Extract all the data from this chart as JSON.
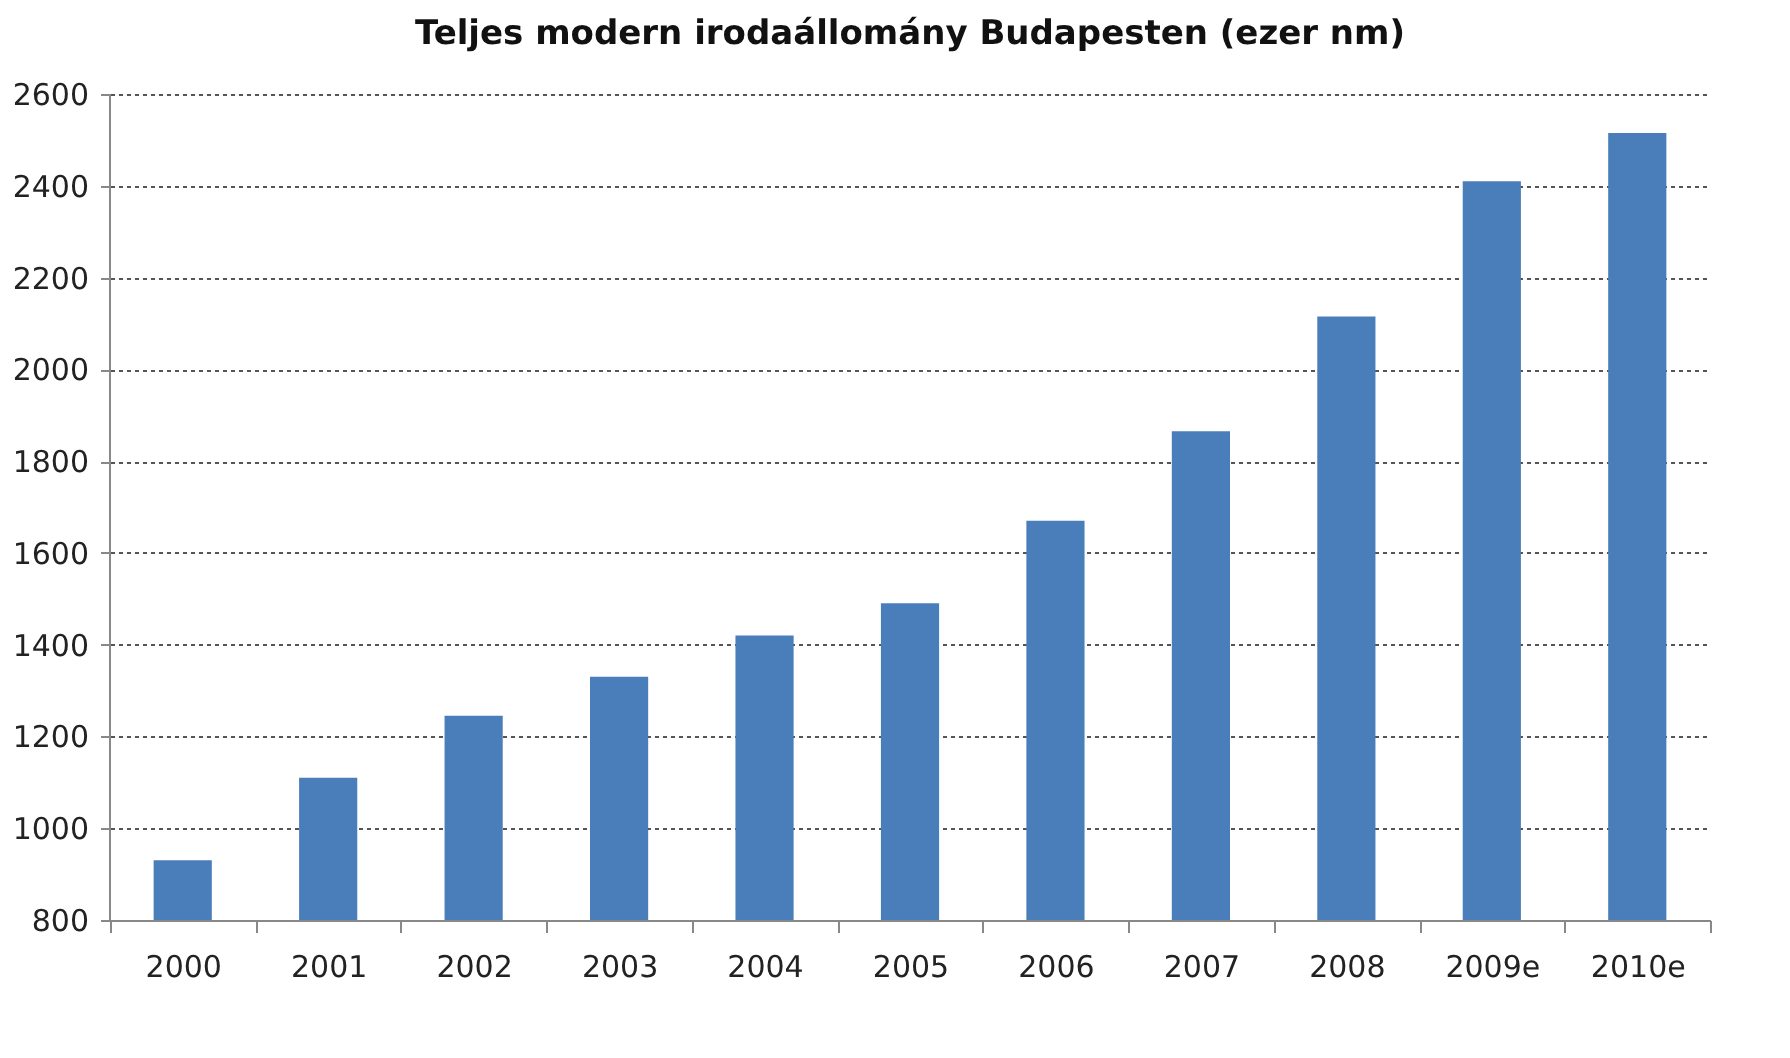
{
  "chart_data": {
    "type": "bar",
    "title": "Teljes modern irodaállomány Budapesten  (ezer nm)",
    "categories": [
      "2000",
      "2001",
      "2002",
      "2003",
      "2004",
      "2005",
      "2006",
      "2007",
      "2008",
      "2009e",
      "2010e"
    ],
    "values": [
      930,
      1110,
      1245,
      1330,
      1420,
      1490,
      1670,
      1865,
      2115,
      2410,
      2515
    ],
    "color": "#4a7ebb",
    "ylim": [
      800,
      2600
    ],
    "yticks": [
      800,
      1000,
      1200,
      1400,
      1600,
      1800,
      2000,
      2200,
      2400,
      2600
    ],
    "grid": "y"
  }
}
